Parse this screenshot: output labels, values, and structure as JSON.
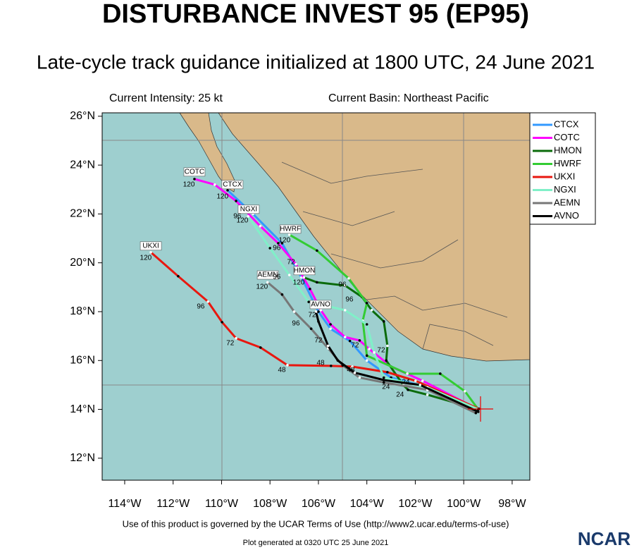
{
  "chart_data": {
    "type": "line",
    "title": "DISTURBANCE INVEST 95 (EP95)",
    "subtitle": "Late-cycle track guidance initialized at 1800 UTC, 24 June 2021",
    "left_note": "Current Intensity: 25 kt",
    "right_note": "Current Basin: Northeast Pacific",
    "footer": "Use of this product is governed by the UCAR Terms of Use (http://www2.ucar.edu/terms-of-use)",
    "generated": "Plot generated at 0320 UTC   25 June 2021",
    "logo": "NCAR",
    "xlim": [
      -114.93,
      -97.27
    ],
    "ylim": [
      11.1,
      26.14
    ],
    "xticks": [
      {
        "value": -114,
        "label": "114°W"
      },
      {
        "value": -112,
        "label": "112°W"
      },
      {
        "value": -110,
        "label": "110°W"
      },
      {
        "value": -108,
        "label": "108°W"
      },
      {
        "value": -106,
        "label": "106°W"
      },
      {
        "value": -104,
        "label": "104°W"
      },
      {
        "value": -102,
        "label": "102°W"
      },
      {
        "value": -100,
        "label": "100°W"
      },
      {
        "value": -98,
        "label": "98°W"
      }
    ],
    "yticks": [
      {
        "value": 12,
        "label": "12°N"
      },
      {
        "value": 14,
        "label": "14°N"
      },
      {
        "value": 16,
        "label": "16°N"
      },
      {
        "value": 18,
        "label": "18°N"
      },
      {
        "value": 20,
        "label": "20°N"
      },
      {
        "value": 22,
        "label": "22°N"
      },
      {
        "value": 24,
        "label": "24°N"
      },
      {
        "value": 26,
        "label": "26°N"
      }
    ],
    "legend": "top-right-outside",
    "series": [
      {
        "name": "CTCX",
        "color": "#3399ff",
        "label_at": [
          -109.55,
          23.2
        ],
        "x": [
          -99.4,
          -101.5,
          -103.0,
          -104.0,
          -104.7,
          -105.5,
          -106.0,
          -106.7,
          -107.5,
          -108.7,
          -109.75
        ],
        "values": [
          14.0,
          14.9,
          15.3,
          16.0,
          16.8,
          17.3,
          18.0,
          19.4,
          20.8,
          22.0,
          22.97
        ]
      },
      {
        "name": "COTC",
        "color": "#ff00ff",
        "label_at": [
          -111.12,
          23.72
        ],
        "x": [
          -99.4,
          -101.7,
          -103.0,
          -103.9,
          -104.3,
          -104.9,
          -105.5,
          -105.9,
          -106.35,
          -106.93,
          -107.66,
          -108.4,
          -109.4,
          -110.28,
          -111.12
        ],
        "values": [
          14.0,
          15.17,
          15.75,
          16.47,
          16.82,
          16.96,
          17.48,
          18.06,
          18.93,
          19.94,
          20.8,
          21.5,
          22.53,
          23.2,
          23.43
        ]
      },
      {
        "name": "HMON",
        "color": "#0b6b0b",
        "label_at": [
          -106.58,
          19.68
        ],
        "x": [
          -99.4,
          -101.5,
          -102.3,
          -102.5,
          -103.2,
          -103.15,
          -103.3,
          -103.8,
          -104.2,
          -104.9,
          -106.06,
          -106.6
        ],
        "values": [
          14.0,
          14.6,
          14.8,
          15.0,
          16.0,
          16.6,
          17.6,
          18.06,
          18.6,
          19.07,
          19.2,
          19.4
        ]
      },
      {
        "name": "HWRF",
        "color": "#33cc33",
        "label_at": [
          -107.16,
          21.38
        ],
        "x": [
          -99.4,
          -99.95,
          -100.97,
          -102.33,
          -104.0,
          -104.17,
          -104.0,
          -104.75,
          -106.06,
          -107.2
        ],
        "values": [
          14.0,
          14.74,
          15.46,
          15.46,
          16.2,
          17.63,
          18.35,
          19.36,
          20.5,
          21.15
        ]
      },
      {
        "name": "UKXI",
        "color": "#e8170f",
        "label_at": [
          -112.92,
          20.69
        ],
        "x": [
          -99.37,
          -101.99,
          -103.15,
          -104.6,
          -105.48,
          -107.28,
          -108.39,
          -109.4,
          -109.98,
          -110.56,
          -111.79,
          -112.92
        ],
        "values": [
          14.02,
          15.17,
          15.52,
          15.75,
          15.78,
          15.81,
          16.53,
          16.91,
          17.57,
          18.41,
          19.45,
          20.43
        ]
      },
      {
        "name": "NGXI",
        "color": "#80f0c8",
        "label_at": [
          -108.88,
          22.19
        ],
        "x": [
          -99.4,
          -101.5,
          -103.3,
          -103.7,
          -104.0,
          -104.9,
          -106.4,
          -107.2,
          -108.0,
          -108.9
        ],
        "values": [
          14.0,
          14.9,
          15.3,
          16.33,
          17.48,
          18.06,
          18.4,
          19.5,
          20.6,
          21.9
        ]
      },
      {
        "name": "AEMN",
        "color": "#777777",
        "label_at": [
          -108.09,
          19.5
        ],
        "x": [
          -99.5,
          -101.5,
          -103.3,
          -104.3,
          -105.0,
          -105.6,
          -106.3,
          -107.0,
          -107.5,
          -108.1
        ],
        "values": [
          13.85,
          14.8,
          15.1,
          15.3,
          15.8,
          16.5,
          17.3,
          18.0,
          18.7,
          19.2
        ]
      },
      {
        "name": "AVNO",
        "color": "#000000",
        "label_at": [
          -105.91,
          18.29
        ],
        "x": [
          -99.4,
          -101.8,
          -103.3,
          -104.5,
          -105.2,
          -105.6,
          -106.0,
          -106.1
        ],
        "values": [
          13.9,
          15.0,
          15.2,
          15.5,
          16.0,
          16.6,
          17.6,
          18.0
        ]
      }
    ],
    "annotations": [
      {
        "text": "120",
        "lon": -111.35,
        "lat": 23.2
      },
      {
        "text": "120",
        "lon": -109.96,
        "lat": 22.71
      },
      {
        "text": "96",
        "lon": -109.35,
        "lat": 21.9
      },
      {
        "text": "120",
        "lon": -109.14,
        "lat": 21.73
      },
      {
        "text": "96",
        "lon": -107.72,
        "lat": 20.6
      },
      {
        "text": "120",
        "lon": -107.4,
        "lat": 20.92
      },
      {
        "text": "72",
        "lon": -107.13,
        "lat": 20.02
      },
      {
        "text": "120",
        "lon": -113.13,
        "lat": 20.2
      },
      {
        "text": "96",
        "lon": -110.86,
        "lat": 18.2
      },
      {
        "text": "72",
        "lon": -109.64,
        "lat": 16.7
      },
      {
        "text": "48",
        "lon": -107.51,
        "lat": 15.61
      },
      {
        "text": "120",
        "lon": -108.33,
        "lat": 19.01
      },
      {
        "text": "96",
        "lon": -107.72,
        "lat": 19.42
      },
      {
        "text": "96",
        "lon": -106.93,
        "lat": 17.51
      },
      {
        "text": "120",
        "lon": -106.81,
        "lat": 19.19
      },
      {
        "text": "96",
        "lon": -105.01,
        "lat": 19.1
      },
      {
        "text": "96",
        "lon": -104.72,
        "lat": 18.49
      },
      {
        "text": "72",
        "lon": -106.0,
        "lat": 16.82
      },
      {
        "text": "72",
        "lon": -104.49,
        "lat": 16.62
      },
      {
        "text": "72",
        "lon": -103.41,
        "lat": 16.42
      },
      {
        "text": "48",
        "lon": -105.91,
        "lat": 15.9
      },
      {
        "text": "48",
        "lon": -104.66,
        "lat": 15.61
      },
      {
        "text": "24",
        "lon": -103.21,
        "lat": 14.91
      },
      {
        "text": "24",
        "lon": -102.63,
        "lat": 14.6
      },
      {
        "text": "24",
        "lon": -102.39,
        "lat": 15.12
      },
      {
        "text": "72",
        "lon": -106.26,
        "lat": 17.86
      }
    ]
  }
}
